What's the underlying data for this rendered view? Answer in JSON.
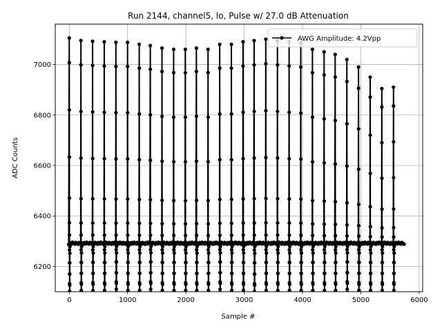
{
  "chart_data": {
    "type": "line",
    "title": "Run 2144, channel5, lo, Pulse w/ 27.0 dB Attenuation",
    "xlabel": "Sample #",
    "ylabel": "ADC Counts",
    "xlim": [
      -240,
      6060
    ],
    "ylim": [
      6100,
      7160
    ],
    "xticks": [
      0,
      1000,
      2000,
      3000,
      4000,
      5000,
      6000
    ],
    "yticks": [
      6200,
      6400,
      6600,
      6800,
      7000
    ],
    "grid": true,
    "legend_position": "top-right",
    "baseline": 6292,
    "series": [
      {
        "name": "AWG Amplitude: 4.2Vpp",
        "color": "#000000",
        "marker": "circle",
        "pulses": [
          {
            "x": 0,
            "peak": 7105,
            "min": 6070
          },
          {
            "x": 200,
            "peak": 7095,
            "min": 6075
          },
          {
            "x": 400,
            "peak": 7092,
            "min": 6075
          },
          {
            "x": 600,
            "peak": 7090,
            "min": 6075
          },
          {
            "x": 800,
            "peak": 7088,
            "min": 6080
          },
          {
            "x": 1000,
            "peak": 7088,
            "min": 6075
          },
          {
            "x": 1200,
            "peak": 7080,
            "min": 6075
          },
          {
            "x": 1390,
            "peak": 7075,
            "min": 6080
          },
          {
            "x": 1590,
            "peak": 7065,
            "min": 6075
          },
          {
            "x": 1790,
            "peak": 7060,
            "min": 6075
          },
          {
            "x": 1990,
            "peak": 7060,
            "min": 6075
          },
          {
            "x": 2180,
            "peak": 7065,
            "min": 6075
          },
          {
            "x": 2380,
            "peak": 7060,
            "min": 6075
          },
          {
            "x": 2580,
            "peak": 7080,
            "min": 6080
          },
          {
            "x": 2780,
            "peak": 7080,
            "min": 6075
          },
          {
            "x": 2980,
            "peak": 7090,
            "min": 6075
          },
          {
            "x": 3170,
            "peak": 7095,
            "min": 6070
          },
          {
            "x": 3370,
            "peak": 7100,
            "min": 6075
          },
          {
            "x": 3570,
            "peak": 7095,
            "min": 6075
          },
          {
            "x": 3770,
            "peak": 7090,
            "min": 6075
          },
          {
            "x": 3970,
            "peak": 7085,
            "min": 6075
          },
          {
            "x": 4170,
            "peak": 7060,
            "min": 6075
          },
          {
            "x": 4370,
            "peak": 7050,
            "min": 6075
          },
          {
            "x": 4560,
            "peak": 7040,
            "min": 6075
          },
          {
            "x": 4760,
            "peak": 7020,
            "min": 6080
          },
          {
            "x": 4960,
            "peak": 6990,
            "min": 6075
          },
          {
            "x": 5160,
            "peak": 6950,
            "min": 6075
          },
          {
            "x": 5360,
            "peak": 6905,
            "min": 6075
          },
          {
            "x": 5560,
            "peak": 6910,
            "min": 6075
          }
        ],
        "x_end": 5750
      }
    ]
  }
}
